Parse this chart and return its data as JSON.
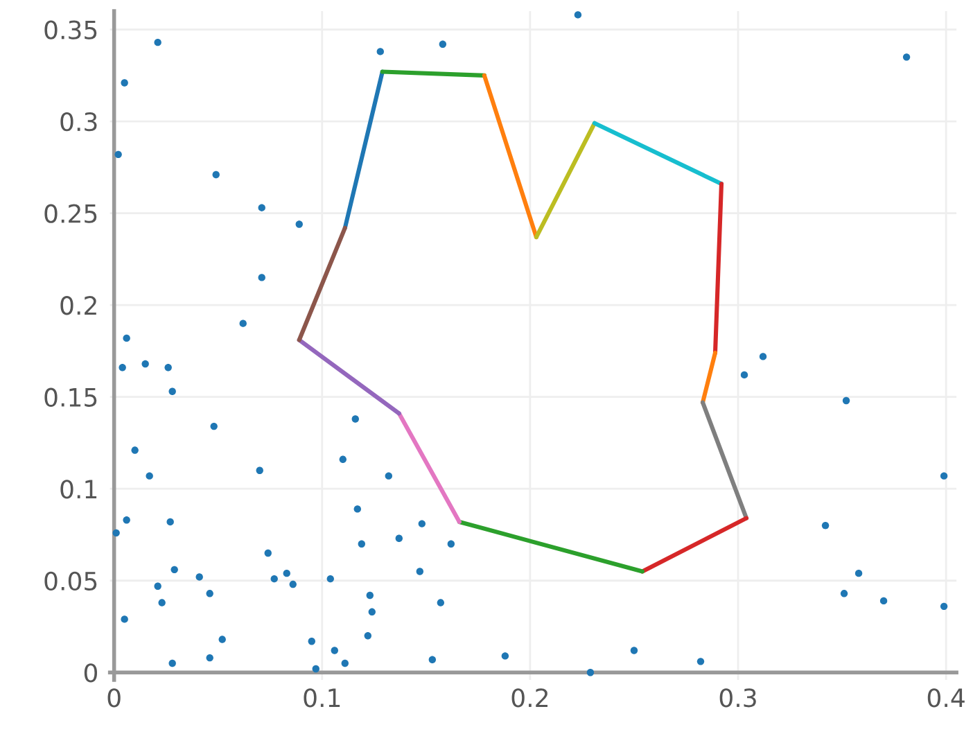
{
  "chart_data": {
    "type": "scatter",
    "xlim": [
      -0.002,
      0.405
    ],
    "ylim": [
      -0.004,
      0.36
    ],
    "xticks": [
      0,
      0.1,
      0.2,
      0.3,
      0.4
    ],
    "yticks": [
      0,
      0.05,
      0.1,
      0.15,
      0.2,
      0.25,
      0.3,
      0.35
    ],
    "grid": true,
    "series": [
      {
        "marker": "circle",
        "color": "#1f77b4",
        "x": [
          0.002,
          0.005,
          0.021,
          0.049,
          0.071,
          0.089,
          0.071,
          0.062,
          0.006,
          0.004,
          0.015,
          0.026,
          0.028,
          0.048,
          0.01,
          0.017,
          0.07,
          0.001,
          0.006,
          0.027,
          0.029,
          0.021,
          0.023,
          0.041,
          0.046,
          0.052,
          0.005,
          0.028,
          0.046,
          0.074,
          0.077,
          0.083,
          0.086,
          0.095,
          0.097,
          0.104,
          0.106,
          0.111,
          0.116,
          0.11,
          0.132,
          0.117,
          0.119,
          0.137,
          0.148,
          0.162,
          0.147,
          0.123,
          0.124,
          0.122,
          0.157,
          0.153,
          0.188,
          0.229,
          0.25,
          0.128,
          0.158,
          0.223,
          0.303,
          0.312,
          0.352,
          0.399,
          0.342,
          0.358,
          0.351,
          0.37,
          0.399,
          0.282,
          0.381
        ],
        "values": [
          0.282,
          0.321,
          0.343,
          0.271,
          0.253,
          0.244,
          0.215,
          0.19,
          0.182,
          0.166,
          0.168,
          0.166,
          0.153,
          0.134,
          0.121,
          0.107,
          0.11,
          0.076,
          0.083,
          0.082,
          0.056,
          0.047,
          0.038,
          0.052,
          0.043,
          0.018,
          0.029,
          0.005,
          0.008,
          0.065,
          0.051,
          0.054,
          0.048,
          0.017,
          0.002,
          0.051,
          0.012,
          0.005,
          0.138,
          0.116,
          0.107,
          0.089,
          0.07,
          0.073,
          0.081,
          0.07,
          0.055,
          0.042,
          0.033,
          0.02,
          0.038,
          0.007,
          0.009,
          0.0,
          0.012,
          0.338,
          0.342,
          0.358,
          0.162,
          0.172,
          0.148,
          0.107,
          0.08,
          0.054,
          0.043,
          0.039,
          0.036,
          0.006,
          0.335
        ]
      },
      {
        "type": "line",
        "color": "#1f77b4",
        "x": [
          0.111,
          0.129
        ],
        "values": [
          0.242,
          0.327
        ]
      },
      {
        "type": "line",
        "color": "#2ca02c",
        "x": [
          0.129,
          0.178
        ],
        "values": [
          0.327,
          0.325
        ]
      },
      {
        "type": "line",
        "color": "#ff7f0e",
        "x": [
          0.178,
          0.203
        ],
        "values": [
          0.325,
          0.237
        ]
      },
      {
        "type": "line",
        "color": "#bcbd22",
        "x": [
          0.203,
          0.231
        ],
        "values": [
          0.237,
          0.299
        ]
      },
      {
        "type": "line",
        "color": "#17becf",
        "x": [
          0.231,
          0.292
        ],
        "values": [
          0.299,
          0.266
        ]
      },
      {
        "type": "line",
        "color": "#d62728",
        "x": [
          0.292,
          0.289
        ],
        "values": [
          0.266,
          0.174
        ]
      },
      {
        "type": "line",
        "color": "#ff7f0e",
        "x": [
          0.289,
          0.283
        ],
        "values": [
          0.174,
          0.147
        ]
      },
      {
        "type": "line",
        "color": "#7f7f7f",
        "x": [
          0.283,
          0.304
        ],
        "values": [
          0.147,
          0.084
        ]
      },
      {
        "type": "line",
        "color": "#d62728",
        "x": [
          0.304,
          0.254
        ],
        "values": [
          0.084,
          0.055
        ]
      },
      {
        "type": "line",
        "color": "#2ca02c",
        "x": [
          0.254,
          0.166
        ],
        "values": [
          0.055,
          0.082
        ]
      },
      {
        "type": "line",
        "color": "#e377c2",
        "x": [
          0.166,
          0.137
        ],
        "values": [
          0.082,
          0.141
        ]
      },
      {
        "type": "line",
        "color": "#9467bd",
        "x": [
          0.137,
          0.089
        ],
        "values": [
          0.141,
          0.181
        ]
      },
      {
        "type": "line",
        "color": "#8c564b",
        "x": [
          0.089,
          0.111
        ],
        "values": [
          0.181,
          0.242
        ]
      }
    ]
  }
}
